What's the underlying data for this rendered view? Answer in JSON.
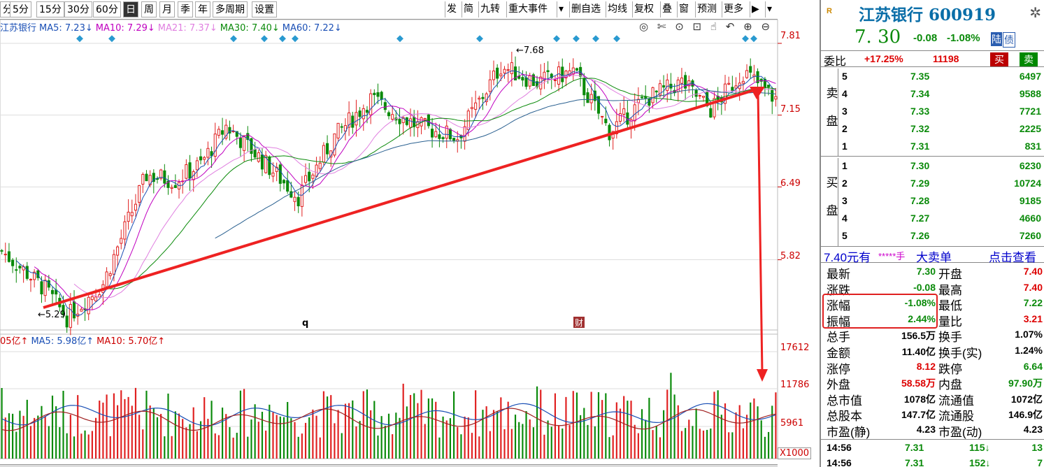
{
  "toolbar": {
    "left_tabs": [
      "分",
      "5分",
      "15分",
      "30分",
      "60分",
      "日",
      "周",
      "月",
      "季",
      "年",
      "多周期",
      "设置"
    ],
    "active_tab": "日",
    "right_tabs": [
      "发",
      "简",
      "九转",
      "重大事件",
      "▾",
      "删自选",
      "均线",
      "复权",
      "叠",
      "窗",
      "预测",
      "更多",
      "▶",
      "▾"
    ]
  },
  "ma_legend": [
    {
      "label": "江苏银行",
      "color": "#1a4fb5"
    },
    {
      "label": "MA5: 7.23↓",
      "color": "#1a4fb5"
    },
    {
      "label": "MA10: 7.29↓",
      "color": "#c000c0"
    },
    {
      "label": "MA21: 7.37↓",
      "color": "#e080e0"
    },
    {
      "label": "MA30: 7.40↓",
      "color": "#0a8a0a"
    },
    {
      "label": "MA60: 7.22↓",
      "color": "#1a4fb5"
    }
  ],
  "chart_icons": "◎ ✄ ⊙ ⊡ ☝ ↶ ⊕ ⊖",
  "price_axis": [
    "7.81",
    "7.15",
    "6.49",
    "5.82"
  ],
  "volume_legend": [
    {
      "label": "05亿↑",
      "color": "#c00"
    },
    {
      "label": "MA5: 5.98亿↑",
      "color": "#1a4fb5"
    },
    {
      "label": "MA10: 5.70亿↑",
      "color": "#c00"
    }
  ],
  "volume_axis": [
    "17612",
    "11786",
    "5961"
  ],
  "volume_unit": "X1000",
  "annotations": {
    "high": "7.68",
    "low": "5.29",
    "marker_q": "q",
    "marker_cai": "财"
  },
  "colors": {
    "up": "#e02020",
    "down": "#0a8a0a",
    "trend_arrow": "#ee2222",
    "accent": "#0a6ea8"
  },
  "stock": {
    "name_code": "江苏银行 600919",
    "badge": "R",
    "price": "7. 30",
    "change": "-0.08",
    "change_pct": "-1.08%",
    "tag1": "陆",
    "tag2": "债"
  },
  "weibi": {
    "label": "委比",
    "pct": "+17.25%",
    "diff": "11198",
    "buy": "买",
    "sell": "卖"
  },
  "sell_side_label": [
    "卖",
    "盘"
  ],
  "buy_side_label": [
    "买",
    "盘"
  ],
  "sell_book": [
    {
      "level": "5",
      "price": "7.35",
      "qty": "6497"
    },
    {
      "level": "4",
      "price": "7.34",
      "qty": "9588"
    },
    {
      "level": "3",
      "price": "7.33",
      "qty": "7721"
    },
    {
      "level": "2",
      "price": "7.32",
      "qty": "2225"
    },
    {
      "level": "1",
      "price": "7.31",
      "qty": "831"
    }
  ],
  "buy_book": [
    {
      "level": "1",
      "price": "7.30",
      "qty": "6230"
    },
    {
      "level": "2",
      "price": "7.29",
      "qty": "10724"
    },
    {
      "level": "3",
      "price": "7.28",
      "qty": "9185"
    },
    {
      "level": "4",
      "price": "7.27",
      "qty": "4660"
    },
    {
      "level": "5",
      "price": "7.26",
      "qty": "7260"
    }
  ],
  "big_order": {
    "price": "7.40元有",
    "hand": "*****手",
    "type": "大卖单",
    "link": "点击查看"
  },
  "quote": [
    {
      "l1": "最新",
      "v1": "7.30",
      "c1": "grn",
      "l2": "开盘",
      "v2": "7.40",
      "c2": "red"
    },
    {
      "l1": "涨跌",
      "v1": "-0.08",
      "c1": "grn",
      "l2": "最高",
      "v2": "7.40",
      "c2": "red"
    },
    {
      "l1": "涨幅",
      "v1": "-1.08%",
      "c1": "grn",
      "l2": "最低",
      "v2": "7.22",
      "c2": "grn"
    },
    {
      "l1": "振幅",
      "v1": "2.44%",
      "c1": "grn",
      "l2": "量比",
      "v2": "3.21",
      "c2": "red"
    },
    {
      "l1": "总手",
      "v1": "156.5万",
      "c1": "blk",
      "l2": "换手",
      "v2": "1.07%",
      "c2": "blk"
    },
    {
      "l1": "金额",
      "v1": "11.40亿",
      "c1": "blk",
      "l2": "换手(实)",
      "v2": "1.24%",
      "c2": "blk"
    },
    {
      "l1": "涨停",
      "v1": "8.12",
      "c1": "red",
      "l2": "跌停",
      "v2": "6.64",
      "c2": "grn"
    },
    {
      "l1": "外盘",
      "v1": "58.58万",
      "c1": "red",
      "l2": "内盘",
      "v2": "97.90万",
      "c2": "grn"
    },
    {
      "l1": "总市值",
      "v1": "1078亿",
      "c1": "blk",
      "l2": "流通值",
      "v2": "1072亿",
      "c2": "blk"
    },
    {
      "l1": "总股本",
      "v1": "147.7亿",
      "c1": "blk",
      "l2": "流通股",
      "v2": "146.9亿",
      "c2": "blk"
    },
    {
      "l1": "市盈(静)",
      "v1": "4.23",
      "c1": "blk",
      "l2": "市盈(动)",
      "v2": "4.23",
      "c2": "blk"
    }
  ],
  "ticks": [
    {
      "time": "14:56",
      "price": "7.31",
      "vol": "115↓",
      "num": "13"
    },
    {
      "time": "14:56",
      "price": "7.31",
      "vol": "152↓",
      "num": "7"
    }
  ]
}
